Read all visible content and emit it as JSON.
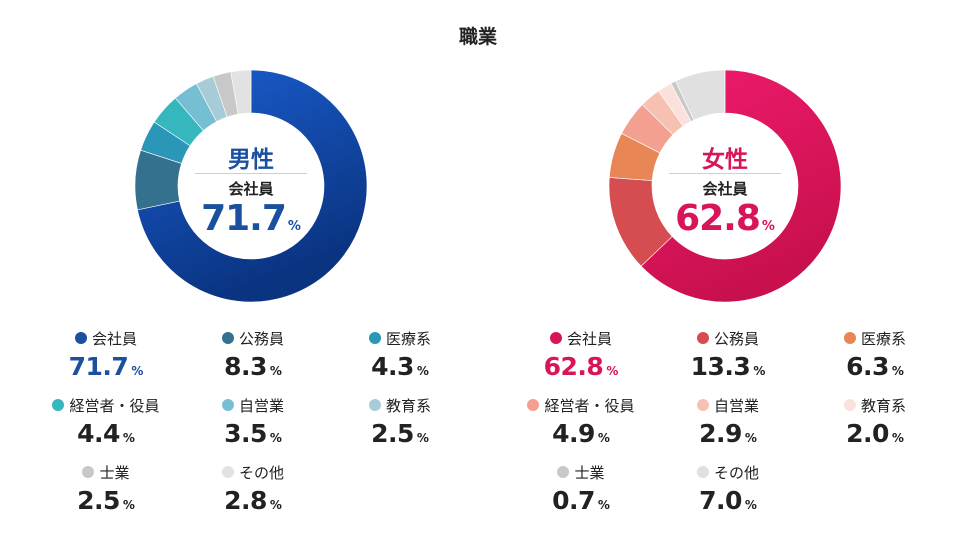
{
  "title": "職業",
  "colors": {
    "male_accent": "#1b4fa0",
    "female_accent": "#d8145a",
    "dark_text": "#222222"
  },
  "chart_data": [
    {
      "type": "pie",
      "gender": "男性",
      "center_category": "会社員",
      "center_value": "71.7",
      "unit": "%",
      "slices": [
        {
          "label": "会社員",
          "value": 71.7,
          "display": "71.7",
          "color": "#0d4aa8"
        },
        {
          "label": "公務員",
          "value": 8.3,
          "display": "8.3",
          "color": "#34718f"
        },
        {
          "label": "医療系",
          "value": 4.3,
          "display": "4.3",
          "color": "#2a97b8"
        },
        {
          "label": "経営者・役員",
          "value": 4.4,
          "display": "4.4",
          "color": "#35b7bd"
        },
        {
          "label": "自営業",
          "value": 3.5,
          "display": "3.5",
          "color": "#76bfd3"
        },
        {
          "label": "教育系",
          "value": 2.5,
          "display": "2.5",
          "color": "#a8ccd7"
        },
        {
          "label": "士業",
          "value": 2.5,
          "display": "2.5",
          "color": "#c8c8c8"
        },
        {
          "label": "その他",
          "value": 2.8,
          "display": "2.8",
          "color": "#e2e2e2"
        }
      ]
    },
    {
      "type": "pie",
      "gender": "女性",
      "center_category": "会社員",
      "center_value": "62.8",
      "unit": "%",
      "slices": [
        {
          "label": "会社員",
          "value": 62.8,
          "display": "62.8",
          "color": "#e0115f"
        },
        {
          "label": "公務員",
          "value": 13.3,
          "display": "13.3",
          "color": "#d64d51"
        },
        {
          "label": "医療系",
          "value": 6.3,
          "display": "6.3",
          "color": "#e88655"
        },
        {
          "label": "経営者・役員",
          "value": 4.9,
          "display": "4.9",
          "color": "#f4a090"
        },
        {
          "label": "自営業",
          "value": 2.9,
          "display": "2.9",
          "color": "#f7c1b1"
        },
        {
          "label": "教育系",
          "value": 2.0,
          "display": "2.0",
          "color": "#fbe1dc"
        },
        {
          "label": "士業",
          "value": 0.7,
          "display": "0.7",
          "color": "#c8c8c8"
        },
        {
          "label": "その他",
          "value": 7.0,
          "display": "7.0",
          "color": "#e0e0e0"
        }
      ]
    }
  ]
}
